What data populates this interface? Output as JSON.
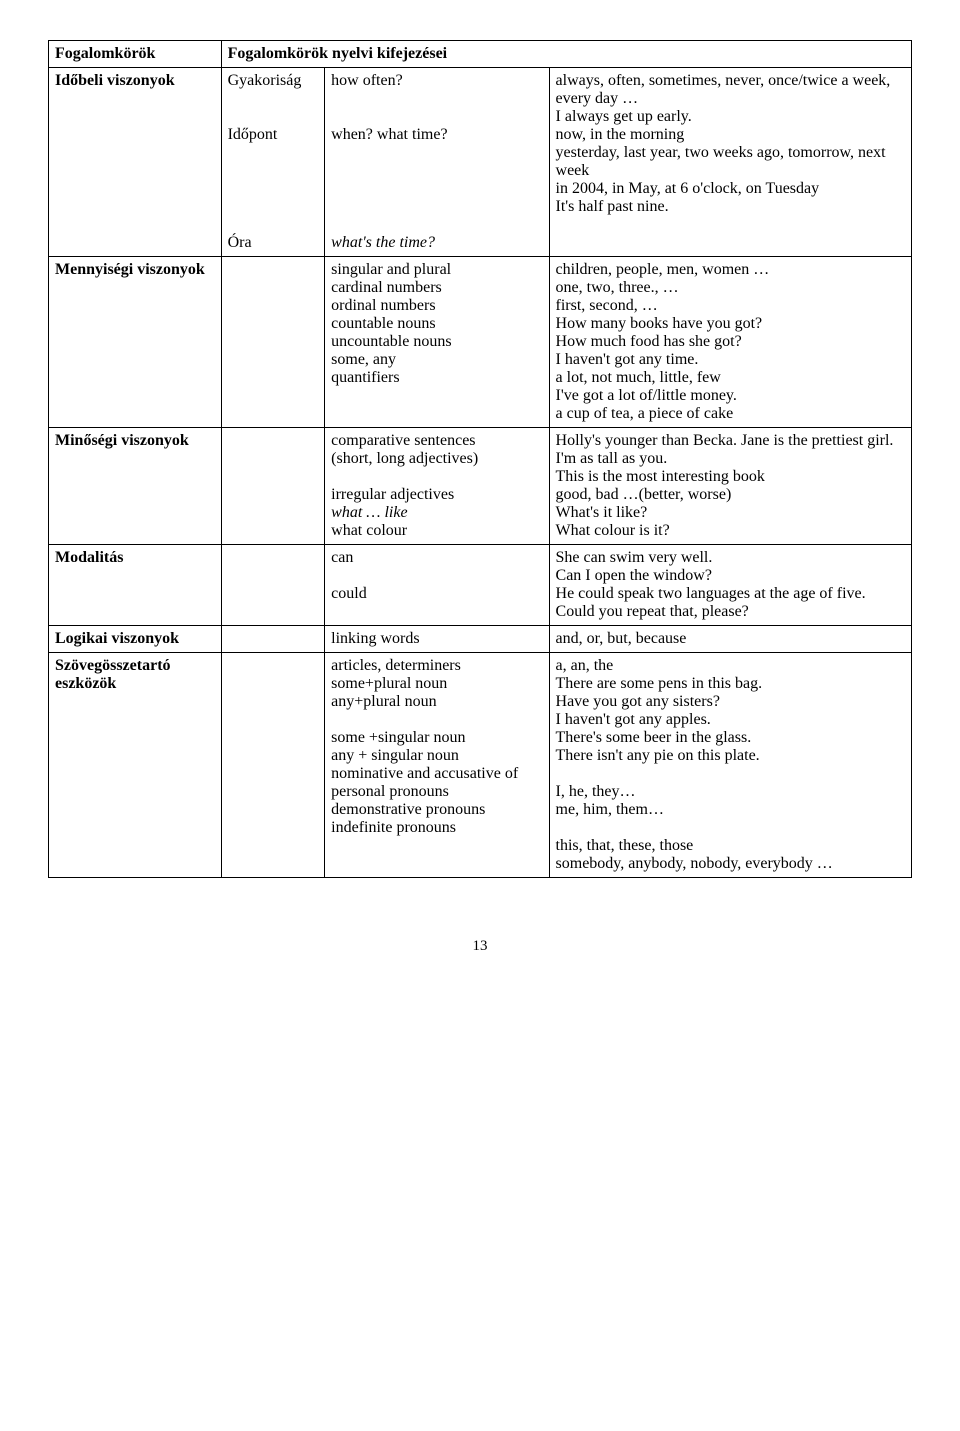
{
  "header": {
    "left": "Fogalomkörök",
    "right": "Fogalomkörök nyelvi kifejezései"
  },
  "rows": [
    {
      "category": "Időbeli viszonyok",
      "category_bold": true,
      "subs": [
        {
          "sub": "Gyakoriság",
          "mid": "how often?",
          "right": "always, often, sometimes, never, once/twice a week, every day …\nI always get up early."
        },
        {
          "sub": "Időpont",
          "mid": "when? what time?",
          "right": "now, in the morning\nyesterday, last year, two weeks ago, tomorrow, next week\nin 2004, in May, at 6 o'clock, on Tuesday"
        },
        {
          "sub": "Óra",
          "mid_italic": "what's the time?",
          "right": "It's half past nine."
        }
      ]
    },
    {
      "category": "Mennyiségi viszonyok",
      "category_bold": true,
      "mid_lines": [
        "singular and plural",
        "cardinal numbers",
        "ordinal numbers",
        "countable nouns",
        "uncountable nouns",
        "some, any",
        "quantifiers"
      ],
      "right_lines": [
        "children, people, men, women …",
        "one, two, three., …",
        "first, second, …",
        "How many books have you got?",
        "How much food has she got?",
        "I haven't got any time.",
        "a lot, not much, little, few",
        "I've got a lot of/little money.",
        "a cup of tea, a piece of cake"
      ]
    },
    {
      "category": "Minőségi viszonyok",
      "category_bold": true,
      "mid_groups": [
        {
          "lines": [
            "comparative sentences",
            "(short, long adjectives)"
          ]
        },
        {
          "spacer": true
        },
        {
          "lines": [
            "irregular adjectives"
          ]
        },
        {
          "italic_lines": [
            "what … like"
          ]
        },
        {
          "lines": [
            "what colour"
          ]
        }
      ],
      "right_lines": [
        "Holly's younger than Becka. Jane is the prettiest girl.",
        "I'm as tall as you.",
        "This is the most interesting book",
        "good, bad …(better, worse)",
        "What's it like?",
        "What colour is it?"
      ]
    },
    {
      "category": "Modalitás",
      "category_bold": true,
      "mid_groups": [
        {
          "lines": [
            "can"
          ]
        },
        {
          "spacer_small": true
        },
        {
          "lines": [
            "could"
          ]
        }
      ],
      "right_lines": [
        "She can swim very well.",
        "Can I open the window?",
        "He could speak two languages at the age of five.",
        "Could you repeat that, please?"
      ]
    },
    {
      "category": "Logikai viszonyok",
      "category_bold": true,
      "mid_lines": [
        "linking words"
      ],
      "right_lines": [
        "and, or, but, because"
      ]
    },
    {
      "category": "Szövegösszetartó eszközök",
      "category_bold": true,
      "mid_groups": [
        {
          "lines": [
            "articles, determiners",
            "some+plural noun",
            "any+plural noun"
          ]
        },
        {
          "spacer": true
        },
        {
          "lines": [
            "some +singular noun",
            "any + singular noun",
            "nominative and accusative of personal pronouns",
            "demonstrative pronouns",
            "indefinite pronouns"
          ]
        }
      ],
      "right_groups": [
        {
          "lines": [
            "a, an, the",
            "There are some pens in this bag.",
            "Have you got any sisters?",
            "I haven't got any apples.",
            "There's some beer in the glass.",
            "There isn't any pie on this plate."
          ]
        },
        {
          "spacer_small": true
        },
        {
          "lines": [
            "I, he, they…",
            "me, him, them…"
          ]
        },
        {
          "spacer_small": true
        },
        {
          "lines": [
            "this, that, these, those",
            "somebody, anybody, nobody, everybody …"
          ]
        }
      ]
    }
  ],
  "page_number": "13"
}
